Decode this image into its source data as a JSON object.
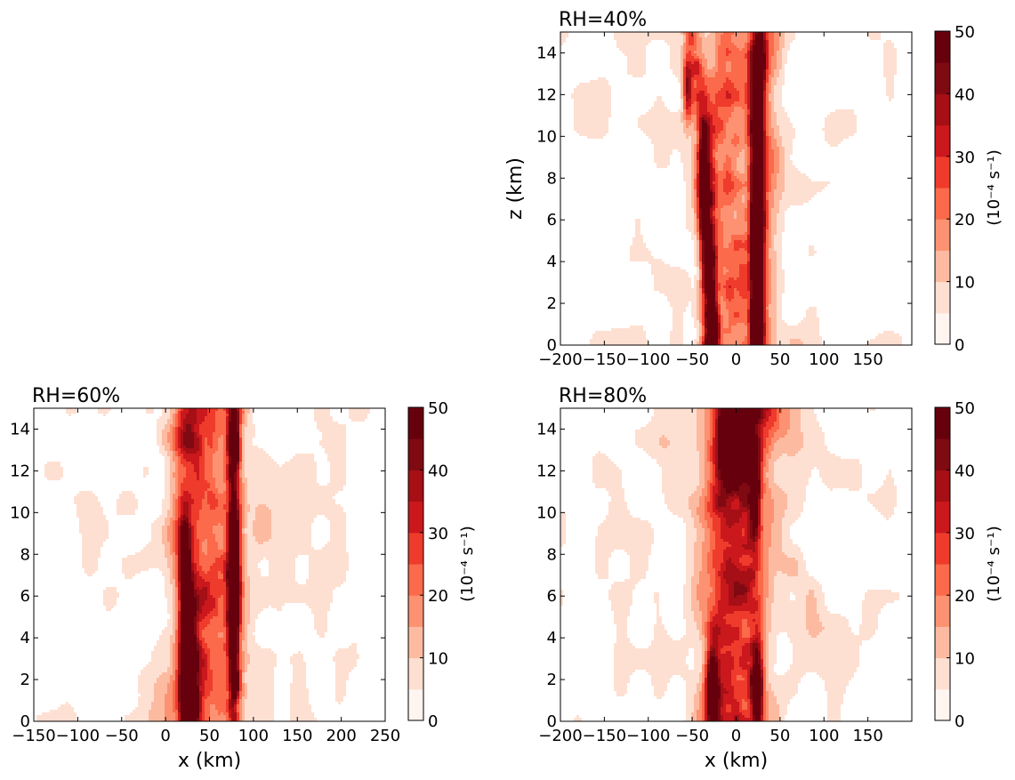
{
  "chart_data": [
    {
      "type": "heatmap",
      "title": "RH=40%",
      "xlabel": "",
      "ylabel": "z (km)",
      "xlim": [
        -200,
        200
      ],
      "ylim": [
        0,
        15
      ],
      "x_ticks": [
        -200,
        -150,
        -100,
        -50,
        0,
        50,
        100,
        150
      ],
      "x_tick_labels": [
        "−200",
        "−150",
        "−100",
        "−50",
        "0",
        "50",
        "100",
        "150"
      ],
      "y_ticks": [
        0,
        2,
        4,
        6,
        8,
        10,
        12,
        14
      ],
      "y_tick_labels": [
        "0",
        "2",
        "4",
        "6",
        "8",
        "10",
        "12",
        "14"
      ],
      "colorbar": {
        "label": "(10⁻⁴ s⁻¹)",
        "ticks": [
          0,
          10,
          20,
          30,
          40,
          50
        ]
      },
      "features": [
        {
          "x": -55,
          "z": 12.3,
          "amp": 36,
          "sx": 4,
          "sz": 1.1
        },
        {
          "x": -37,
          "z": 7.5,
          "amp": 34,
          "sx": 4,
          "sz": 2.5
        },
        {
          "x": -30,
          "z": 3.5,
          "amp": 30,
          "sx": 5,
          "sz": 2.5
        },
        {
          "x": -26,
          "z": 0.6,
          "amp": 46,
          "sx": 5,
          "sz": 1.0
        },
        {
          "x": 24,
          "z": 7.5,
          "amp": 46,
          "sx": 5,
          "sz": 2.5
        },
        {
          "x": 23,
          "z": 3.5,
          "amp": 40,
          "sx": 4,
          "sz": 2.5
        },
        {
          "x": 24,
          "z": 0.6,
          "amp": 46,
          "sx": 5,
          "sz": 1.0
        },
        {
          "x": 27,
          "z": 13.5,
          "amp": 28,
          "sx": 5,
          "sz": 1.5
        }
      ]
    },
    {
      "type": "heatmap",
      "title": "RH=60%",
      "xlabel": "x (km)",
      "ylabel": "",
      "xlim": [
        -150,
        250
      ],
      "ylim": [
        0,
        15
      ],
      "x_ticks": [
        -150,
        -100,
        -50,
        0,
        50,
        100,
        150,
        200,
        250
      ],
      "x_tick_labels": [
        "−150",
        "−100",
        "−50",
        "0",
        "50",
        "100",
        "150",
        "200",
        "250"
      ],
      "y_ticks": [
        0,
        2,
        4,
        6,
        8,
        10,
        12,
        14
      ],
      "y_tick_labels": [
        "0",
        "2",
        "4",
        "6",
        "8",
        "10",
        "12",
        "14"
      ],
      "colorbar": {
        "label": "(10⁻⁴ s⁻¹)",
        "ticks": [
          0,
          10,
          20,
          30,
          40,
          50
        ]
      },
      "features": [
        {
          "x": 22,
          "z": 7.5,
          "amp": 40,
          "sx": 4,
          "sz": 1.5
        },
        {
          "x": 25,
          "z": 3.0,
          "amp": 40,
          "sx": 6,
          "sz": 2.5
        },
        {
          "x": 28,
          "z": 0.6,
          "amp": 48,
          "sx": 6,
          "sz": 1.0
        },
        {
          "x": 78,
          "z": 8.5,
          "amp": 42,
          "sx": 4,
          "sz": 2.0
        },
        {
          "x": 77,
          "z": 4.0,
          "amp": 36,
          "sx": 4,
          "sz": 2.5
        },
        {
          "x": 78,
          "z": 13.5,
          "amp": 36,
          "sx": 4,
          "sz": 1.0
        }
      ]
    },
    {
      "type": "heatmap",
      "title": "RH=80%",
      "xlabel": "x (km)",
      "ylabel": "",
      "xlim": [
        -200,
        200
      ],
      "ylim": [
        0,
        15
      ],
      "x_ticks": [
        -200,
        -150,
        -100,
        -50,
        0,
        50,
        100,
        150
      ],
      "x_tick_labels": [
        "−200",
        "−150",
        "−100",
        "−50",
        "0",
        "50",
        "100",
        "150"
      ],
      "y_ticks": [
        0,
        2,
        4,
        6,
        8,
        10,
        12,
        14
      ],
      "y_tick_labels": [
        "0",
        "2",
        "4",
        "6",
        "8",
        "10",
        "12",
        "14"
      ],
      "colorbar": {
        "label": "(10⁻⁴ s⁻¹)",
        "ticks": [
          0,
          10,
          20,
          30,
          40,
          50
        ]
      },
      "features": [
        {
          "x": -27,
          "z": 1.5,
          "amp": 46,
          "sx": 5,
          "sz": 1.6
        },
        {
          "x": 24,
          "z": 1.5,
          "amp": 46,
          "sx": 5,
          "sz": 1.6
        },
        {
          "x": 22,
          "z": 11.0,
          "amp": 36,
          "sx": 4,
          "sz": 1.5
        },
        {
          "x": -10,
          "z": 13.5,
          "amp": 34,
          "sx": 7,
          "sz": 1.5
        },
        {
          "x": 8,
          "z": 13.0,
          "amp": 30,
          "sx": 10,
          "sz": 1.5
        }
      ]
    }
  ]
}
